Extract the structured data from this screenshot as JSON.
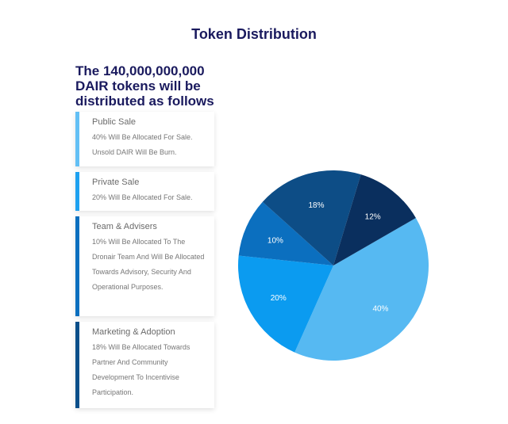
{
  "page": {
    "title": "Token Distribution",
    "headline": "The 140,000,000,000 DAIR tokens will be distributed as follows"
  },
  "cards": [
    {
      "title": "Public Sale",
      "desc": "40% Will Be Allocated For Sale. Unsold DAIR Will Be Burn."
    },
    {
      "title": "Private Sale",
      "desc": "20% Will Be Allocated For Sale."
    },
    {
      "title": "Team & Advisers",
      "desc": "10% Will Be Allocated To The Dronair Team And Will Be Allocated Towards Advisory, Security And Operational Purposes."
    },
    {
      "title": "Marketing & Adoption",
      "desc": "18% Will Be Allocated Towards Partner And Community Development To Incentivise Participation."
    }
  ],
  "chart_data": {
    "type": "pie",
    "start_angle_deg": -30,
    "direction": "clockwise",
    "slices": [
      {
        "label": "40%",
        "value": 40,
        "color": "#56b9f2"
      },
      {
        "label": "20%",
        "value": 20,
        "color": "#0b9bf0"
      },
      {
        "label": "10%",
        "value": 10,
        "color": "#0b6fbf"
      },
      {
        "label": "18%",
        "value": 18,
        "color": "#0d4d86"
      },
      {
        "label": "12%",
        "value": 12,
        "color": "#0a2f5e"
      }
    ]
  }
}
